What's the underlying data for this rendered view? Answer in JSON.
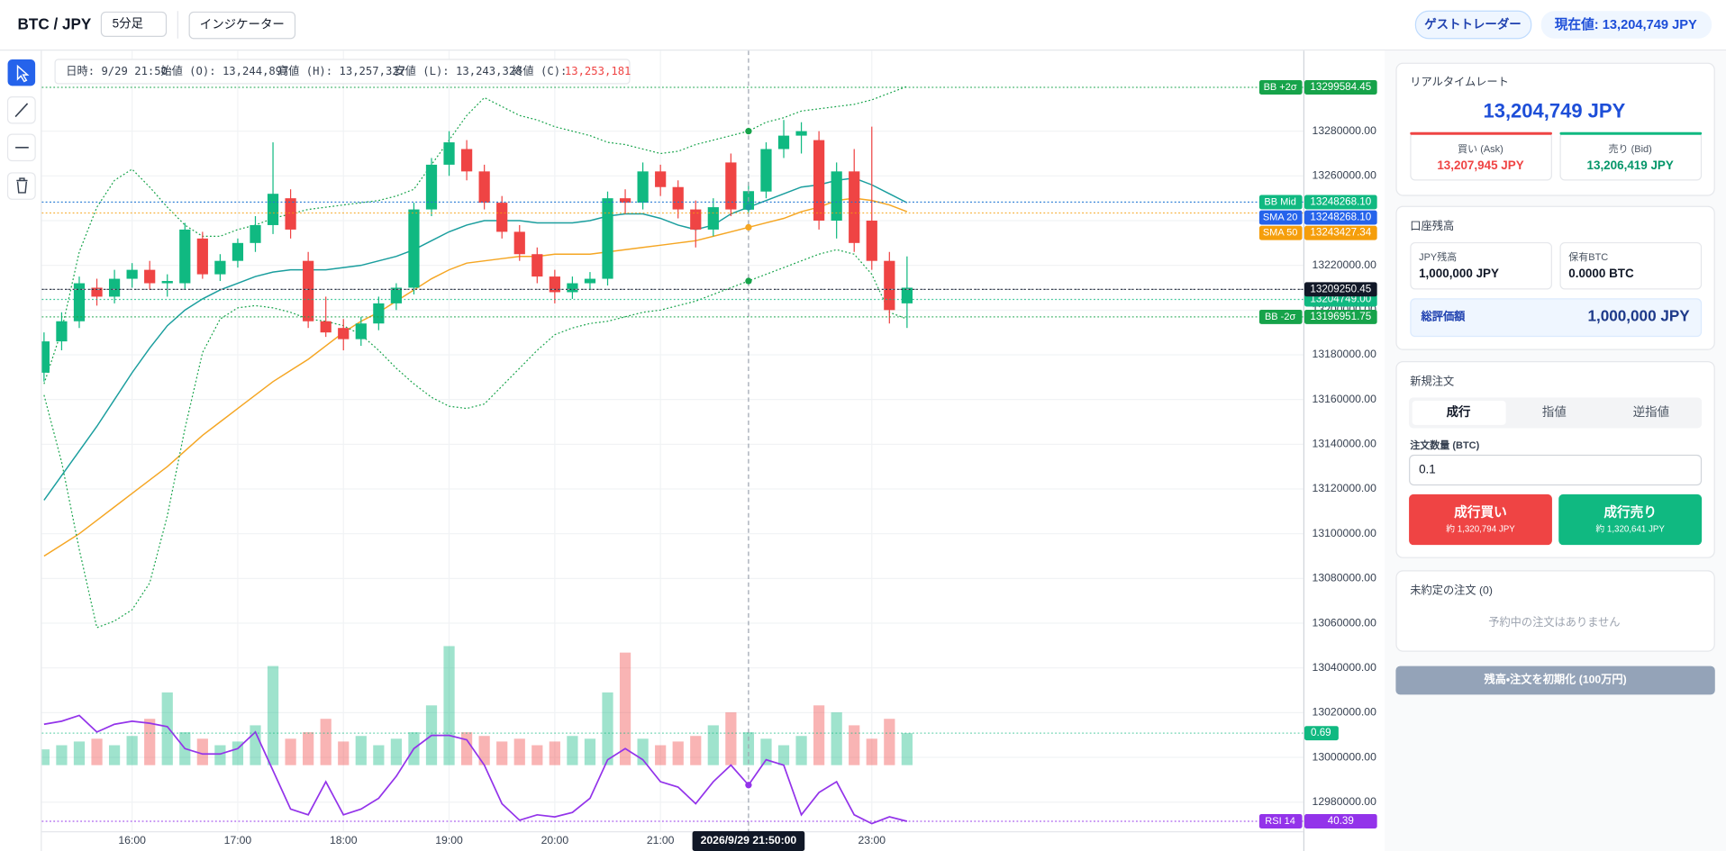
{
  "header": {
    "symbol": "BTC / JPY",
    "timeframe": "5分足",
    "indicators": "インジケーター",
    "user": "ゲストトレーダー",
    "current_price": "現在値: 13,204,749 JPY"
  },
  "chart_data": {
    "type": "candlestick",
    "up_color": "#10b981",
    "down_color": "#ef4444",
    "grid": true,
    "candles": {
      "open": [
        13172000,
        13186000,
        13195000,
        13210000,
        13206000,
        13214000,
        13218000,
        13212000,
        13212000,
        13232000,
        13216000,
        13222000,
        13230000,
        13238000,
        13250000,
        13222000,
        13195000,
        13192000,
        13187000,
        13194000,
        13203000,
        13210000,
        13245000,
        13265000,
        13272000,
        13262000,
        13248000,
        13235000,
        13225000,
        13215000,
        13208000,
        13212000,
        13214000,
        13250000,
        13248000,
        13262000,
        13255000,
        13245000,
        13236000,
        13266000,
        13244897,
        13253000,
        13272000,
        13278000,
        13276000,
        13240000,
        13262000,
        13240000,
        13222000,
        13203000
      ],
      "high": [
        13190000,
        13199000,
        13215000,
        13214000,
        13218000,
        13221000,
        13222000,
        13216000,
        13239000,
        13235000,
        13225000,
        13232000,
        13242000,
        13275000,
        13254000,
        13226000,
        13206000,
        13196000,
        13197000,
        13206000,
        13212000,
        13248000,
        13268000,
        13280000,
        13276000,
        13265000,
        13251000,
        13238000,
        13228000,
        13218000,
        13215000,
        13217000,
        13253000,
        13254000,
        13266000,
        13265000,
        13258000,
        13249000,
        13250000,
        13270000,
        13257327,
        13275000,
        13285000,
        13284000,
        13280000,
        13266000,
        13272000,
        13282000,
        13226000,
        13224000
      ],
      "low": [
        13168000,
        13182000,
        13192000,
        13202000,
        13203000,
        13210000,
        13209000,
        13206000,
        13209000,
        13214000,
        13213000,
        13219000,
        13226000,
        13234000,
        13232000,
        13192000,
        13188000,
        13182000,
        13184000,
        13191000,
        13200000,
        13207000,
        13242000,
        13260000,
        13258000,
        13245000,
        13232000,
        13222000,
        13212000,
        13203000,
        13205000,
        13209000,
        13211000,
        13243000,
        13245000,
        13251000,
        13241000,
        13228000,
        13233000,
        13242000,
        13243328,
        13250000,
        13268000,
        13270000,
        13236000,
        13232000,
        13226000,
        13218000,
        13194000,
        13192000
      ],
      "close": [
        13186000,
        13195000,
        13212000,
        13206000,
        13214000,
        13218000,
        13212000,
        13213000,
        13236000,
        13216000,
        13222000,
        13230000,
        13238000,
        13252000,
        13236000,
        13195000,
        13190000,
        13187000,
        13194000,
        13203000,
        13210000,
        13245000,
        13265000,
        13275000,
        13262000,
        13248000,
        13235000,
        13225000,
        13215000,
        13208000,
        13212000,
        13214000,
        13250000,
        13248000,
        13262000,
        13255000,
        13245000,
        13236000,
        13246000,
        13245000,
        13253181,
        13272000,
        13278000,
        13280000,
        13240000,
        13262000,
        13230000,
        13222000,
        13200000,
        13210000
      ]
    },
    "ylim": [
      12967000,
      13316000
    ],
    "yticks": [
      {
        "value": 12980000,
        "label": "12980000.00"
      },
      {
        "value": 13000000,
        "label": "13000000.00"
      },
      {
        "value": 13020000,
        "label": "13020000.00"
      },
      {
        "value": 13040000,
        "label": "13040000.00"
      },
      {
        "value": 13060000,
        "label": "13060000.00"
      },
      {
        "value": 13080000,
        "label": "13080000.00"
      },
      {
        "value": 13100000,
        "label": "13100000.00"
      },
      {
        "value": 13120000,
        "label": "13120000.00"
      },
      {
        "value": 13140000,
        "label": "13140000.00"
      },
      {
        "value": 13160000,
        "label": "13160000.00"
      },
      {
        "value": 13180000,
        "label": "13180000.00"
      },
      {
        "value": 13200000,
        "label": "13200000.00"
      },
      {
        "value": 13220000,
        "label": "13220000.00"
      },
      {
        "value": 13240000,
        "label": "13240000.00"
      },
      {
        "value": 13260000,
        "label": "13260000.00"
      },
      {
        "value": 13280000,
        "label": "13280000.00"
      }
    ],
    "xticks": [
      "16:00",
      "17:00",
      "18:00",
      "19:00",
      "20:00",
      "21:00",
      "23:00"
    ],
    "series": [
      {
        "name": "SMA 20",
        "color": "#1a9e9e",
        "style": "solid",
        "values": [
          13115000,
          13126000,
          13137000,
          13148000,
          13160000,
          13172000,
          13183000,
          13193000,
          13200000,
          13205000,
          13209000,
          13212000,
          13215000,
          13217000,
          13218000,
          13218000,
          13218000,
          13219000,
          13220000,
          13222000,
          13224000,
          13227000,
          13231000,
          13235000,
          13238000,
          13240000,
          13240000,
          13240000,
          13239000,
          13239000,
          13239000,
          13240000,
          13242000,
          13243000,
          13243000,
          13241000,
          13238000,
          13236000,
          13238000,
          13243000,
          13246000,
          13249000,
          13252000,
          13255000,
          13256000,
          13258000,
          13259000,
          13256000,
          13252000,
          13248000
        ]
      },
      {
        "name": "SMA 50",
        "color": "#f5a623",
        "style": "solid",
        "values": [
          13090000,
          13095000,
          13100000,
          13106000,
          13112000,
          13118000,
          13124000,
          13130000,
          13137000,
          13144000,
          13150000,
          13156000,
          13162000,
          13168000,
          13173000,
          13178000,
          13184000,
          13190000,
          13195000,
          13199000,
          13204000,
          13209000,
          13214000,
          13218000,
          13221000,
          13222000,
          13223000,
          13224000,
          13224000,
          13225000,
          13225000,
          13225000,
          13226000,
          13227000,
          13228000,
          13229000,
          13230000,
          13231000,
          13233000,
          13235000,
          13237000,
          13239000,
          13241000,
          13244000,
          13246000,
          13249000,
          13250000,
          13249000,
          13247000,
          13244000
        ]
      },
      {
        "name": "BB +2σ",
        "color": "#16a34a",
        "style": "dotted",
        "values": [
          13167000,
          13191000,
          13226000,
          13246000,
          13258000,
          13263000,
          13255000,
          13246000,
          13238000,
          13233000,
          13233000,
          13236000,
          13238000,
          13241000,
          13243000,
          13245000,
          13246000,
          13247000,
          13248000,
          13249000,
          13251000,
          13254000,
          13265000,
          13276000,
          13287000,
          13295000,
          13291000,
          13287000,
          13285000,
          13282000,
          13280000,
          13278000,
          13275000,
          13274000,
          13272000,
          13270000,
          13271000,
          13274000,
          13276000,
          13278000,
          13280000,
          13284000,
          13286000,
          13289000,
          13290000,
          13291000,
          13292000,
          13294000,
          13297000,
          13300000
        ]
      },
      {
        "name": "BB -2σ",
        "color": "#16a34a",
        "style": "dotted",
        "values": [
          13162000,
          13132000,
          13093000,
          13058000,
          13061000,
          13066000,
          13078000,
          13108000,
          13147000,
          13181000,
          13196000,
          13201000,
          13202000,
          13201000,
          13199000,
          13196000,
          13195000,
          13193000,
          13189000,
          13182000,
          13174000,
          13167000,
          13161000,
          13157000,
          13156000,
          13158000,
          13166000,
          13174000,
          13182000,
          13189000,
          13192000,
          13194000,
          13195000,
          13197000,
          13199000,
          13200000,
          13202000,
          13204000,
          13207000,
          13210000,
          13213000,
          13216000,
          13219000,
          13222000,
          13225000,
          13227000,
          13225000,
          13216000,
          13199000,
          13196000
        ]
      }
    ],
    "volume": {
      "ylim": [
        0,
        2.9
      ],
      "color": "#10b981",
      "values": [
        0.34,
        0.43,
        0.51,
        0.57,
        0.43,
        0.63,
        1.0,
        1.57,
        0.71,
        0.57,
        0.43,
        0.51,
        0.86,
        2.14,
        0.57,
        0.71,
        1.0,
        0.51,
        0.63,
        0.43,
        0.57,
        0.71,
        1.29,
        2.57,
        0.71,
        0.63,
        0.51,
        0.57,
        0.43,
        0.51,
        0.63,
        0.57,
        1.57,
        2.43,
        0.57,
        0.43,
        0.51,
        0.63,
        0.86,
        1.14,
        0.71,
        0.57,
        0.43,
        0.63,
        1.29,
        1.14,
        0.86,
        0.57,
        1.0,
        0.69
      ]
    },
    "rsi": {
      "name": "RSI 14",
      "color": "#9333ea",
      "ylim": [
        0,
        100
      ],
      "values": [
        69.1,
        70.0,
        71.7,
        66.8,
        69.1,
        70.0,
        69.4,
        68.4,
        61.9,
        60.3,
        60.3,
        61.9,
        66.8,
        55.4,
        44.0,
        42.3,
        52.1,
        42.3,
        44.0,
        47.2,
        53.7,
        61.9,
        65.8,
        65.8,
        64.5,
        57.0,
        45.6,
        40.7,
        42.3,
        41.7,
        43.0,
        47.2,
        58.6,
        61.9,
        58.6,
        52.1,
        50.5,
        45.6,
        52.1,
        57.0,
        51.1,
        58.6,
        57.0,
        42.3,
        48.9,
        52.1,
        42.3,
        39.7,
        41.7,
        40.39
      ]
    },
    "price_markers": [
      {
        "name": "BB +2σ",
        "value": 13299584.45,
        "color": "#16a34a"
      },
      {
        "name": "BB Mid",
        "value": 13248268.1,
        "label": "13248268.10",
        "color": "#10b981"
      },
      {
        "name": "SMA 20",
        "value": 13248268.1,
        "label": "13248268.10",
        "color": "#2563eb"
      },
      {
        "name": "SMA 50",
        "value": 13243427.34,
        "color": "#f59e0b"
      },
      {
        "value": 13204749,
        "label": "13204749.00",
        "color": "#10b981"
      },
      {
        "name": "BB -2σ",
        "value": 13196951.75,
        "color": "#16a34a"
      }
    ],
    "crosshair": {
      "time": "2026/9/29 21:50:00",
      "price": 13209250.45,
      "color": "#111827"
    },
    "ohlc_info": {
      "time": "日時: 9/29 21:50",
      "open": "始値 (O): 13,244,897",
      "high": "高値 (H): 13,257,327",
      "low": "安値 (L): 13,243,328",
      "close_label": "終値 (C):",
      "close": "13,253,181"
    }
  },
  "panel": {
    "rate": {
      "title": "リアルタイムレート",
      "price": "13,204,749 JPY",
      "ask_label": "買い (Ask)",
      "ask": "13,207,945 JPY",
      "bid_label": "売り (Bid)",
      "bid": "13,206,419 JPY"
    },
    "balance": {
      "title": "口座残高",
      "jpy_label": "JPY残高",
      "jpy": "1,000,000 JPY",
      "btc_label": "保有BTC",
      "btc": "0.0000 BTC",
      "total_label": "総評価額",
      "total": "1,000,000 JPY"
    },
    "order": {
      "title": "新規注文",
      "tabs": [
        "成行",
        "指値",
        "逆指値"
      ],
      "qty_label": "注文数量 (BTC)",
      "qty": "0.1",
      "buy": "成行買い",
      "buy_est": "約 1,320,794 JPY",
      "sell": "成行売り",
      "sell_est": "約 1,320,641 JPY"
    },
    "pending": {
      "title": "未約定の注文 (0)",
      "empty": "予約中の注文はありません"
    },
    "reset": "残高・注文を初期化 (100万円)"
  }
}
